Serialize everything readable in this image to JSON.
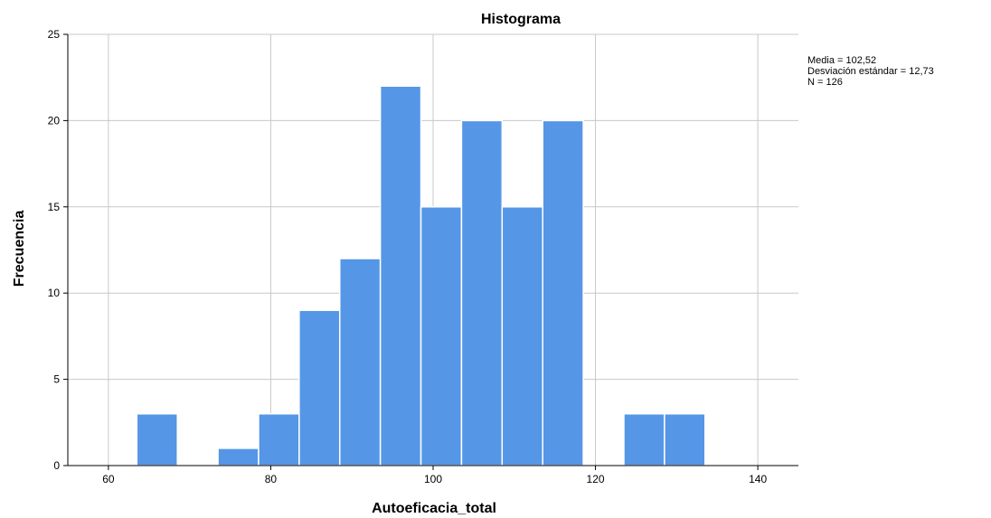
{
  "chart_data": {
    "type": "bar",
    "title": "Histograma",
    "xlabel": "Autoeficacia_total",
    "ylabel": "Frecuencia",
    "xlim": [
      55,
      145
    ],
    "ylim": [
      0,
      25
    ],
    "xticks": [
      60,
      80,
      100,
      120,
      140
    ],
    "yticks": [
      0,
      5,
      10,
      15,
      20,
      25
    ],
    "bin_width": 5,
    "bins": [
      {
        "start": 63.5,
        "count": 3
      },
      {
        "start": 68.5,
        "count": 0
      },
      {
        "start": 73.5,
        "count": 1
      },
      {
        "start": 78.5,
        "count": 3
      },
      {
        "start": 83.5,
        "count": 9
      },
      {
        "start": 88.5,
        "count": 12
      },
      {
        "start": 93.5,
        "count": 22
      },
      {
        "start": 98.5,
        "count": 15
      },
      {
        "start": 103.5,
        "count": 20
      },
      {
        "start": 108.5,
        "count": 15
      },
      {
        "start": 113.5,
        "count": 20
      },
      {
        "start": 118.5,
        "count": 0
      },
      {
        "start": 123.5,
        "count": 3
      },
      {
        "start": 128.5,
        "count": 3
      }
    ],
    "grid": true,
    "bar_color": "#5596e6",
    "grid_color": "#c8c8c8",
    "stats": {
      "mean": "Media = 102,52",
      "std": "Desviación estándar = 12,73",
      "n": "N = 126"
    }
  }
}
